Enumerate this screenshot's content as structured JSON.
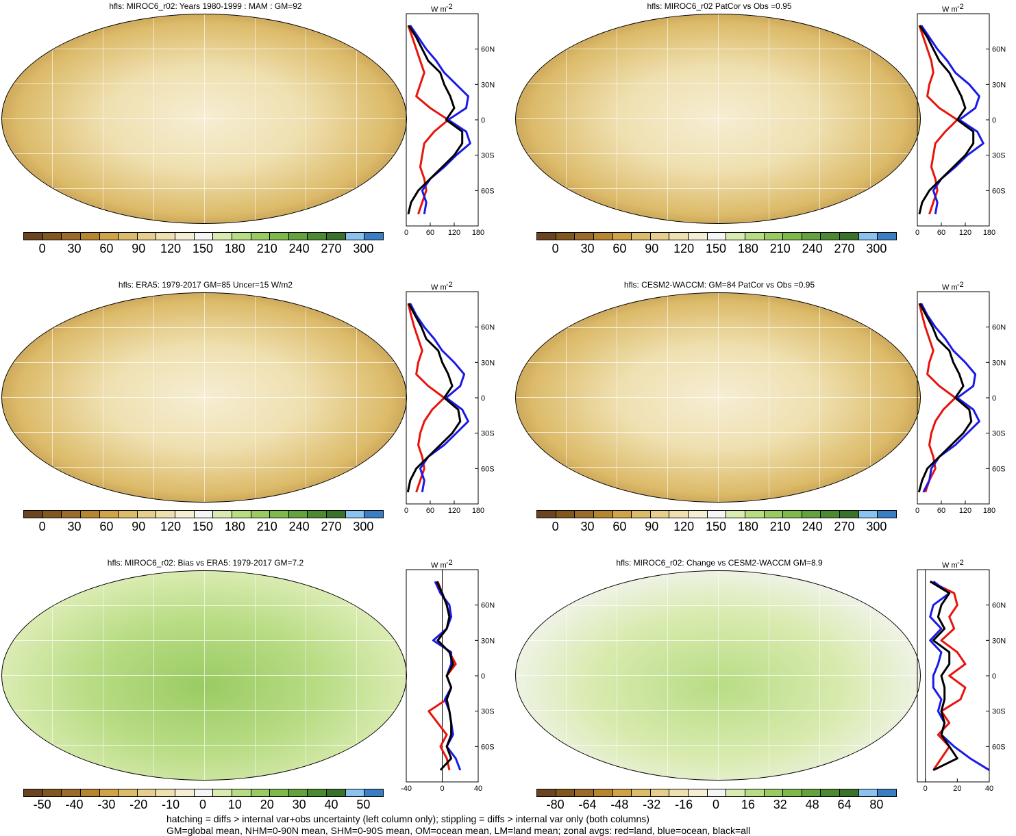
{
  "titles": {
    "p1": "hfls: MIROC6_r02: Years 1980-1999 : MAM : GM=92",
    "p2": "hfls: MIROC6_r02 PatCor vs Obs =0.95",
    "p3": "hfls: ERA5: 1979-2017 GM=85 Uncer=15 W/m2",
    "p4": "hfls: CESM2-WACCM: GM=84 PatCor vs Obs =0.95",
    "p5": "hfls: MIROC6_r02: Bias vs ERA5: 1979-2017 GM=7.2",
    "p6": "hfls: MIROC6_r02: Change vs CESM2-WACCM GM=8.9"
  },
  "colorbars": {
    "abs_colors": [
      "#6b4520",
      "#82571f",
      "#9a6b2a",
      "#b6852f",
      "#cfa34a",
      "#dcbb6a",
      "#e6cf8e",
      "#efe0b0",
      "#f6eed4",
      "#f5f5f5",
      "#d9ebb0",
      "#b8dc84",
      "#9acb63",
      "#7fb84c",
      "#63a23c",
      "#4b8a33",
      "#3a7229",
      "#8cc3ee",
      "#3a7fc4"
    ],
    "abs_labels": [
      "0",
      "30",
      "60",
      "90",
      "120",
      "150",
      "180",
      "210",
      "240",
      "270",
      "300"
    ],
    "bias_colors": [
      "#6b4520",
      "#82571f",
      "#9a6b2a",
      "#b6852f",
      "#cfa34a",
      "#dcbb6a",
      "#e6cf8e",
      "#efe0b0",
      "#f6eed4",
      "#f5f5f5",
      "#d9ebb0",
      "#b8dc84",
      "#9acb63",
      "#7fb84c",
      "#63a23c",
      "#4b8a33",
      "#3a7229",
      "#8cc3ee",
      "#3a7fc4"
    ],
    "bias_labels": [
      "-50",
      "-40",
      "-30",
      "-20",
      "-10",
      "0",
      "10",
      "20",
      "30",
      "40",
      "50"
    ],
    "change_colors": [
      "#6b4520",
      "#82571f",
      "#9a6b2a",
      "#b6852f",
      "#cfa34a",
      "#dcbb6a",
      "#e6cf8e",
      "#efe0b0",
      "#f6eed4",
      "#f5f5f5",
      "#d9ebb0",
      "#b8dc84",
      "#9acb63",
      "#7fb84c",
      "#63a23c",
      "#4b8a33",
      "#3a7229",
      "#8cc3ee",
      "#3a7fc4"
    ],
    "change_labels": [
      "-80",
      "-64",
      "-48",
      "-32",
      "-16",
      "0",
      "16",
      "32",
      "48",
      "64",
      "80"
    ]
  },
  "zonal": {
    "unit": "W m",
    "unit_sup": "-2",
    "lat_labels": [
      "60N",
      "30N",
      "0",
      "30S",
      "60S"
    ],
    "abs_xticks": [
      "0",
      "60",
      "120",
      "180"
    ],
    "bias_xticks": [
      "-40",
      "0",
      "40"
    ],
    "change_xticks": [
      "0",
      "20",
      "40"
    ]
  },
  "footer": {
    "line1": "hatching = diffs > internal var+obs uncertainty (left column only); stippling = diffs > internal var only (both columns)",
    "line2": "GM=global mean, NHM=0-90N mean, SHM=0-90S mean, OM=ocean mean, LM=land mean; zonal avgs: red=land, blue=ocean, black=all"
  },
  "chart_data": [
    {
      "type": "line",
      "title": "hfls: MIROC6_r02: Years 1980-1999 : MAM : GM=92",
      "xlabel": "W m-2",
      "xlim": [
        0,
        180
      ],
      "lat": [
        80,
        70,
        60,
        50,
        40,
        30,
        20,
        10,
        0,
        -10,
        -20,
        -30,
        -40,
        -50,
        -60,
        -70,
        -80
      ],
      "series": [
        {
          "name": "land",
          "color": "#e8140c",
          "values": [
            5,
            15,
            25,
            35,
            45,
            35,
            25,
            60,
            105,
            70,
            45,
            40,
            35,
            45,
            50,
            40,
            30
          ]
        },
        {
          "name": "ocean",
          "color": "#1a1ae8",
          "values": [
            10,
            30,
            50,
            75,
            95,
            125,
            155,
            150,
            105,
            150,
            160,
            125,
            95,
            60,
            40,
            50,
            45
          ]
        },
        {
          "name": "all",
          "color": "#000000",
          "values": [
            6,
            25,
            40,
            55,
            85,
            95,
            110,
            120,
            100,
            140,
            140,
            120,
            90,
            60,
            30,
            12,
            5
          ]
        }
      ]
    },
    {
      "type": "line",
      "title": "hfls: MIROC6_r02 PatCor vs Obs =0.95",
      "xlabel": "W m-2",
      "xlim": [
        0,
        180
      ],
      "lat": [
        80,
        70,
        60,
        50,
        40,
        30,
        20,
        10,
        0,
        -10,
        -20,
        -30,
        -40,
        -50,
        -60,
        -70,
        -80
      ],
      "series": [
        {
          "name": "land",
          "color": "#e8140c",
          "values": [
            5,
            15,
            25,
            35,
            40,
            30,
            25,
            55,
            100,
            70,
            45,
            40,
            35,
            45,
            50,
            40,
            30
          ]
        },
        {
          "name": "ocean",
          "color": "#1a1ae8",
          "values": [
            10,
            30,
            50,
            75,
            95,
            130,
            155,
            145,
            105,
            150,
            165,
            125,
            95,
            60,
            40,
            50,
            45
          ]
        },
        {
          "name": "all",
          "color": "#000000",
          "values": [
            6,
            25,
            40,
            55,
            80,
            95,
            110,
            120,
            100,
            140,
            140,
            120,
            90,
            60,
            30,
            12,
            5
          ]
        }
      ]
    },
    {
      "type": "line",
      "title": "hfls: ERA5: 1979-2017 GM=85 Uncer=15 W/m2",
      "xlabel": "W m-2",
      "xlim": [
        0,
        180
      ],
      "lat": [
        80,
        70,
        60,
        50,
        40,
        30,
        20,
        10,
        0,
        -10,
        -20,
        -30,
        -40,
        -50,
        -60,
        -70,
        -80
      ],
      "series": [
        {
          "name": "land",
          "color": "#e8140c",
          "values": [
            5,
            12,
            20,
            30,
            40,
            30,
            25,
            55,
            95,
            65,
            45,
            35,
            30,
            40,
            45,
            35,
            25
          ]
        },
        {
          "name": "ocean",
          "color": "#1a1ae8",
          "values": [
            10,
            25,
            45,
            70,
            90,
            120,
            145,
            135,
            100,
            140,
            155,
            125,
            95,
            55,
            35,
            45,
            40
          ]
        },
        {
          "name": "all",
          "color": "#000000",
          "values": [
            6,
            22,
            38,
            50,
            80,
            90,
            105,
            115,
            95,
            130,
            135,
            115,
            85,
            55,
            25,
            10,
            4
          ]
        }
      ]
    },
    {
      "type": "line",
      "title": "hfls: CESM2-WACCM: GM=84 PatCor vs Obs =0.95",
      "xlabel": "W m-2",
      "xlim": [
        0,
        180
      ],
      "lat": [
        80,
        70,
        60,
        50,
        40,
        30,
        20,
        10,
        0,
        -10,
        -20,
        -30,
        -40,
        -50,
        -60,
        -70,
        -80
      ],
      "series": [
        {
          "name": "land",
          "color": "#e8140c",
          "values": [
            5,
            12,
            20,
            30,
            40,
            30,
            25,
            55,
            95,
            65,
            45,
            35,
            30,
            40,
            45,
            30,
            20
          ]
        },
        {
          "name": "ocean",
          "color": "#1a1ae8",
          "values": [
            10,
            25,
            45,
            70,
            90,
            120,
            145,
            140,
            100,
            140,
            155,
            125,
            95,
            55,
            35,
            30,
            15
          ]
        },
        {
          "name": "all",
          "color": "#000000",
          "values": [
            6,
            22,
            38,
            50,
            80,
            90,
            105,
            115,
            95,
            130,
            135,
            115,
            85,
            55,
            25,
            12,
            4
          ]
        }
      ]
    },
    {
      "type": "line",
      "title": "hfls: MIROC6_r02: Bias vs ERA5: 1979-2017 GM=7.2",
      "xlabel": "W m-2",
      "xlim": [
        -40,
        40
      ],
      "lat": [
        80,
        70,
        60,
        50,
        40,
        30,
        20,
        10,
        0,
        -10,
        -20,
        -30,
        -40,
        -50,
        -60,
        -70,
        -80
      ],
      "series": [
        {
          "name": "land",
          "color": "#e8140c",
          "values": [
            -5,
            0,
            5,
            8,
            5,
            -5,
            8,
            15,
            5,
            10,
            5,
            -15,
            -5,
            5,
            -2,
            5,
            8
          ]
        },
        {
          "name": "ocean",
          "color": "#1a1ae8",
          "values": [
            -8,
            -2,
            8,
            10,
            5,
            -10,
            10,
            10,
            5,
            10,
            3,
            8,
            10,
            12,
            5,
            15,
            20
          ]
        },
        {
          "name": "all",
          "color": "#000000",
          "values": [
            -6,
            0,
            5,
            8,
            5,
            -5,
            8,
            12,
            5,
            10,
            5,
            8,
            10,
            10,
            5,
            10,
            -2
          ]
        }
      ]
    },
    {
      "type": "line",
      "title": "hfls: MIROC6_r02: Change vs CESM2-WACCM GM=8.9",
      "xlabel": "W m-2",
      "xlim": [
        -5,
        40
      ],
      "lat": [
        80,
        70,
        60,
        50,
        40,
        30,
        20,
        10,
        0,
        -10,
        -20,
        -30,
        -40,
        -50,
        -60,
        -70,
        -80
      ],
      "series": [
        {
          "name": "land",
          "color": "#e8140c",
          "values": [
            3,
            18,
            20,
            15,
            18,
            10,
            20,
            25,
            15,
            25,
            22,
            10,
            15,
            8,
            15,
            10,
            5
          ]
        },
        {
          "name": "ocean",
          "color": "#1a1ae8",
          "values": [
            5,
            15,
            5,
            3,
            10,
            3,
            10,
            8,
            5,
            5,
            10,
            8,
            12,
            10,
            18,
            28,
            40
          ]
        },
        {
          "name": "all",
          "color": "#000000",
          "values": [
            3,
            15,
            10,
            8,
            12,
            5,
            15,
            15,
            10,
            12,
            12,
            10,
            12,
            10,
            15,
            20,
            5
          ]
        }
      ]
    }
  ]
}
